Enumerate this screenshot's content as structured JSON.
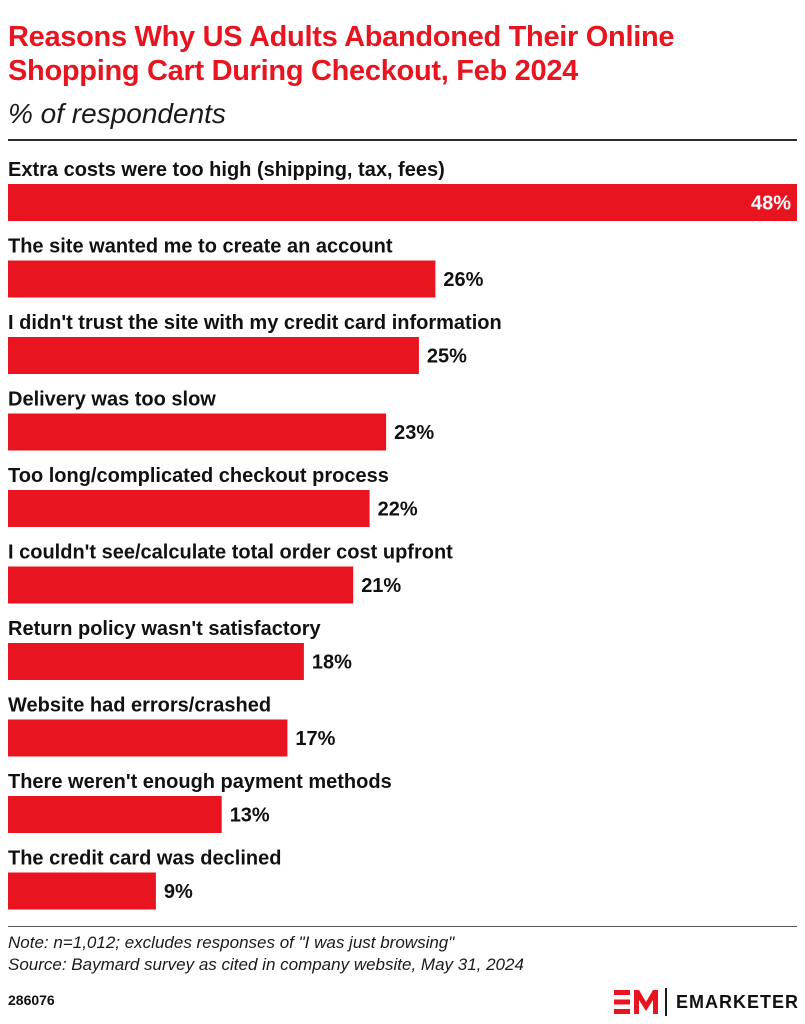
{
  "header": {
    "title": "Reasons Why US Adults Abandoned Their Online Shopping Cart During Checkout, Feb 2024",
    "subtitle": "% of respondents"
  },
  "chart_data": {
    "type": "bar",
    "orientation": "horizontal",
    "title": "Reasons Why US Adults Abandoned Their Online Shopping Cart During Checkout, Feb 2024",
    "subtitle": "% of respondents",
    "categories": [
      "Extra costs were too high (shipping, tax, fees)",
      "The site wanted me to create an account",
      "I didn't trust the site with my credit card information",
      "Delivery was too slow",
      "Too long/complicated checkout process",
      "I couldn't see/calculate total order cost upfront",
      "Return policy wasn't satisfactory",
      "Website had errors/crashed",
      "There weren't enough payment methods",
      "The credit card was declined"
    ],
    "values": [
      48,
      26,
      25,
      23,
      22,
      21,
      18,
      17,
      13,
      9
    ],
    "value_labels": [
      "48%",
      "26%",
      "25%",
      "23%",
      "22%",
      "21%",
      "18%",
      "17%",
      "13%",
      "9%"
    ],
    "xlim": [
      0,
      48
    ],
    "grid": false,
    "legend": "none",
    "bar_color": "#e8141f"
  },
  "footer": {
    "note": "Note: n=1,012; excludes responses of \"I was just browsing\"",
    "source": "Source: Baymard survey as cited in company website, May 31, 2024",
    "chart_id": "286076",
    "brand_name": "EMARKETER",
    "brand_icon": "em-logo-icon"
  },
  "colors": {
    "accent": "#e8141f",
    "text": "#111111",
    "value_inside": "#ffffff"
  }
}
